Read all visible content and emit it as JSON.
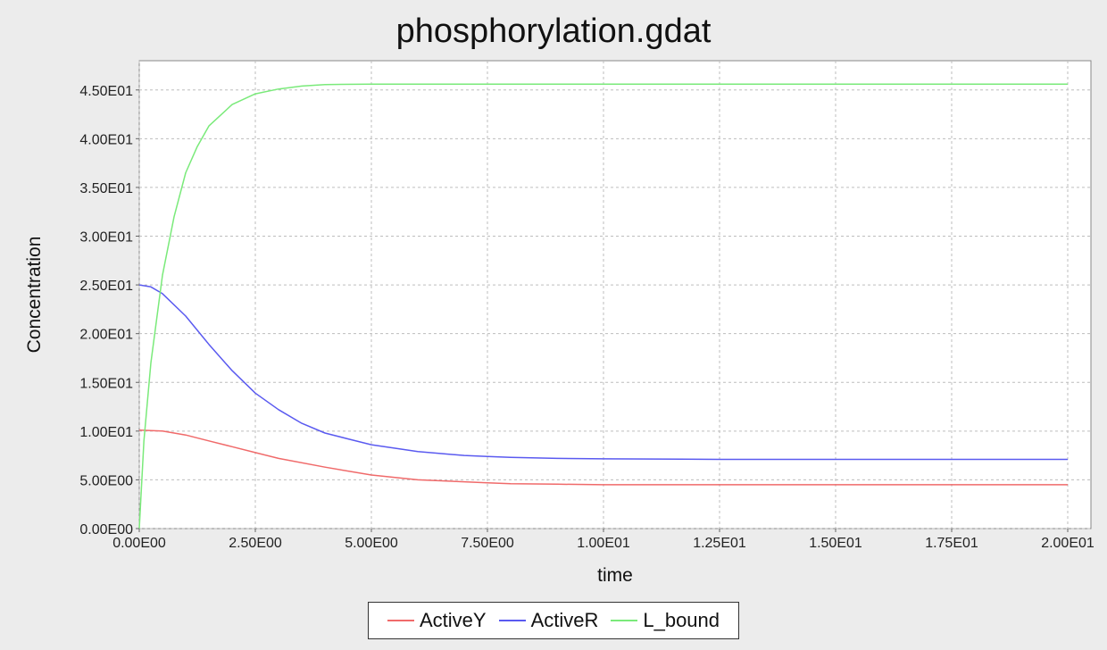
{
  "chart_data": {
    "type": "line",
    "title": "phosphorylation.gdat",
    "xlabel": "time",
    "ylabel": "Concentration",
    "xlim": [
      0,
      20.5
    ],
    "ylim": [
      0,
      48.0
    ],
    "x_ticks": [
      0,
      2.5,
      5.0,
      7.5,
      10.0,
      12.5,
      15.0,
      17.5,
      20.0
    ],
    "x_tick_labels": [
      "0.00E00",
      "2.50E00",
      "5.00E00",
      "7.50E00",
      "1.00E01",
      "1.25E01",
      "1.50E01",
      "1.75E01",
      "2.00E01"
    ],
    "y_ticks": [
      0,
      5,
      10,
      15,
      20,
      25,
      30,
      35,
      40,
      45
    ],
    "y_tick_labels": [
      "0.00E00",
      "5.00E00",
      "1.00E01",
      "1.50E01",
      "2.00E01",
      "2.50E01",
      "3.00E01",
      "3.50E01",
      "4.00E01",
      "4.50E01"
    ],
    "grid": true,
    "legend_position": "bottom",
    "series": [
      {
        "name": "ActiveY",
        "color": "#f06a6a",
        "x": [
          0,
          0.5,
          1.0,
          1.5,
          2.0,
          2.5,
          3.0,
          4.0,
          5.0,
          6.0,
          7.0,
          7.5,
          8.0,
          9.0,
          10.0,
          12.5,
          15.0,
          17.5,
          20.0
        ],
        "y": [
          10.1,
          10.0,
          9.6,
          9.0,
          8.4,
          7.8,
          7.2,
          6.3,
          5.5,
          5.0,
          4.8,
          4.7,
          4.6,
          4.55,
          4.5,
          4.5,
          4.5,
          4.5,
          4.5
        ]
      },
      {
        "name": "ActiveR",
        "color": "#5a5af0",
        "x": [
          0,
          0.25,
          0.5,
          1.0,
          1.5,
          2.0,
          2.5,
          3.0,
          3.5,
          4.0,
          4.5,
          5.0,
          6.0,
          7.0,
          7.5,
          8.0,
          9.0,
          10.0,
          12.5,
          15.0,
          17.5,
          20.0
        ],
        "y": [
          25.0,
          24.8,
          24.1,
          21.8,
          18.9,
          16.2,
          13.9,
          12.2,
          10.8,
          9.8,
          9.2,
          8.6,
          7.9,
          7.5,
          7.4,
          7.3,
          7.2,
          7.15,
          7.1,
          7.1,
          7.1,
          7.1
        ]
      },
      {
        "name": "L_bound",
        "color": "#7aea7a",
        "x": [
          0,
          0.1,
          0.25,
          0.5,
          0.75,
          1.0,
          1.25,
          1.5,
          2.0,
          2.5,
          3.0,
          3.5,
          4.0,
          5.0,
          7.5,
          10.0,
          15.0,
          20.0
        ],
        "y": [
          0,
          9.0,
          17.0,
          26.0,
          32.0,
          36.5,
          39.2,
          41.3,
          43.5,
          44.6,
          45.1,
          45.4,
          45.55,
          45.6,
          45.6,
          45.6,
          45.6,
          45.6
        ]
      }
    ]
  }
}
